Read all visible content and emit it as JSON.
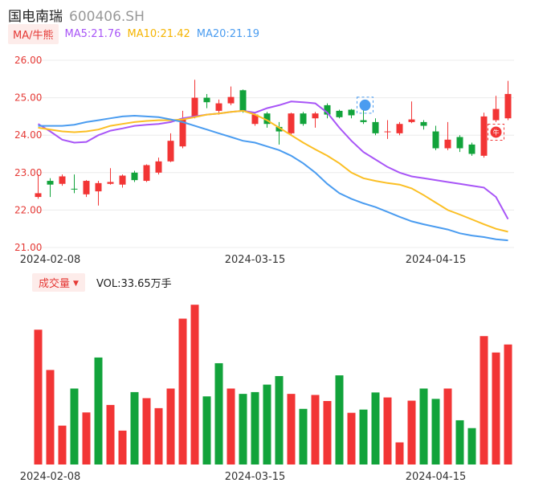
{
  "header": {
    "name": "国电南瑞",
    "code": "600406.SH"
  },
  "ma_bar": {
    "selector_label": "MA/牛熊",
    "ma5": "MA5:21.76",
    "ma10": "MA10:21.42",
    "ma20": "MA20:21.19"
  },
  "volume_bar": {
    "selector_label": "成交量",
    "vol_text": "VOL:33.65万手"
  },
  "markers": {
    "flag": "牛"
  },
  "colors": {
    "up": "#f23535",
    "down": "#12a33b",
    "ma5": "#a855f7",
    "ma10": "#fbbf24",
    "ma20": "#4a9cf0",
    "axis": "#e53935"
  },
  "chart_data": [
    {
      "type": "candlestick",
      "y_ticks": [
        "26.00",
        "25.00",
        "24.00",
        "23.00",
        "22.00",
        "21.00"
      ],
      "ylim": [
        21.0,
        26.0
      ],
      "x_tick_labels": [
        "2024-02-08",
        "2024-03-15",
        "2024-04-15"
      ],
      "x_tick_index": [
        1,
        18,
        33
      ],
      "grid": true,
      "candles": [
        {
          "o": 22.35,
          "c": 22.45,
          "h": 22.95,
          "l": 22.3,
          "up": true
        },
        {
          "o": 22.78,
          "c": 22.68,
          "h": 22.85,
          "l": 22.35,
          "up": false
        },
        {
          "o": 22.7,
          "c": 22.9,
          "h": 22.95,
          "l": 22.65,
          "up": true
        },
        {
          "o": 22.57,
          "c": 22.56,
          "h": 22.95,
          "l": 22.45,
          "up": false
        },
        {
          "o": 22.42,
          "c": 22.78,
          "h": 22.8,
          "l": 22.35,
          "up": true
        },
        {
          "o": 22.5,
          "c": 22.72,
          "h": 22.78,
          "l": 22.12,
          "up": true
        },
        {
          "o": 22.7,
          "c": 22.75,
          "h": 23.12,
          "l": 22.68,
          "up": true
        },
        {
          "o": 22.68,
          "c": 22.92,
          "h": 22.95,
          "l": 22.6,
          "up": true
        },
        {
          "o": 23.0,
          "c": 22.8,
          "h": 23.05,
          "l": 22.75,
          "up": false
        },
        {
          "o": 22.78,
          "c": 23.2,
          "h": 23.22,
          "l": 22.75,
          "up": true
        },
        {
          "o": 23.0,
          "c": 23.3,
          "h": 23.4,
          "l": 22.95,
          "up": true
        },
        {
          "o": 23.3,
          "c": 23.85,
          "h": 24.05,
          "l": 23.28,
          "up": true
        },
        {
          "o": 23.7,
          "c": 24.45,
          "h": 24.65,
          "l": 23.65,
          "up": true
        },
        {
          "o": 24.48,
          "c": 25.0,
          "h": 25.48,
          "l": 24.45,
          "up": true
        },
        {
          "o": 25.0,
          "c": 24.88,
          "h": 25.1,
          "l": 24.72,
          "up": false
        },
        {
          "o": 24.65,
          "c": 24.85,
          "h": 24.95,
          "l": 24.55,
          "up": true
        },
        {
          "o": 24.85,
          "c": 25.02,
          "h": 25.3,
          "l": 24.8,
          "up": true
        },
        {
          "o": 25.2,
          "c": 24.65,
          "h": 25.22,
          "l": 24.6,
          "up": false
        },
        {
          "o": 24.3,
          "c": 24.55,
          "h": 24.6,
          "l": 24.25,
          "up": true
        },
        {
          "o": 24.58,
          "c": 24.3,
          "h": 24.62,
          "l": 24.2,
          "up": false
        },
        {
          "o": 24.22,
          "c": 24.1,
          "h": 24.35,
          "l": 23.75,
          "up": false
        },
        {
          "o": 24.05,
          "c": 24.58,
          "h": 24.6,
          "l": 24.0,
          "up": true
        },
        {
          "o": 24.58,
          "c": 24.3,
          "h": 24.62,
          "l": 24.25,
          "up": false
        },
        {
          "o": 24.45,
          "c": 24.58,
          "h": 24.62,
          "l": 24.2,
          "up": true
        },
        {
          "o": 24.8,
          "c": 24.55,
          "h": 24.85,
          "l": 24.45,
          "up": false
        },
        {
          "o": 24.65,
          "c": 24.48,
          "h": 24.68,
          "l": 24.45,
          "up": false
        },
        {
          "o": 24.68,
          "c": 24.53,
          "h": 24.7,
          "l": 24.45,
          "up": false
        },
        {
          "o": 24.4,
          "c": 24.35,
          "h": 24.75,
          "l": 24.3,
          "up": false
        },
        {
          "o": 24.35,
          "c": 24.05,
          "h": 24.45,
          "l": 24.0,
          "up": false
        },
        {
          "o": 24.08,
          "c": 24.1,
          "h": 24.4,
          "l": 23.9,
          "up": true
        },
        {
          "o": 24.05,
          "c": 24.3,
          "h": 24.35,
          "l": 24.0,
          "up": true
        },
        {
          "o": 24.35,
          "c": 24.42,
          "h": 24.9,
          "l": 24.32,
          "up": true
        },
        {
          "o": 24.35,
          "c": 24.25,
          "h": 24.4,
          "l": 24.15,
          "up": false
        },
        {
          "o": 24.1,
          "c": 23.65,
          "h": 24.25,
          "l": 23.6,
          "up": false
        },
        {
          "o": 23.65,
          "c": 23.88,
          "h": 24.35,
          "l": 23.6,
          "up": true
        },
        {
          "o": 23.95,
          "c": 23.65,
          "h": 24.0,
          "l": 23.55,
          "up": false
        },
        {
          "o": 23.75,
          "c": 23.5,
          "h": 23.8,
          "l": 23.45,
          "up": false
        },
        {
          "o": 23.45,
          "c": 24.5,
          "h": 24.6,
          "l": 23.4,
          "up": true
        },
        {
          "o": 24.4,
          "c": 24.7,
          "h": 25.05,
          "l": 24.35,
          "up": true
        },
        {
          "o": 24.45,
          "c": 25.1,
          "h": 25.45,
          "l": 24.4,
          "up": true
        }
      ],
      "series": [
        {
          "name": "MA5",
          "values": [
            24.3,
            24.1,
            23.88,
            23.8,
            23.82,
            24.0,
            24.12,
            24.18,
            24.25,
            24.28,
            24.3,
            24.35,
            24.45,
            24.5,
            24.55,
            24.58,
            24.62,
            24.65,
            24.6,
            24.72,
            24.8,
            24.9,
            24.88,
            24.85,
            24.6,
            24.2,
            23.85,
            23.55,
            23.35,
            23.15,
            23.0,
            22.9,
            22.85,
            22.8,
            22.75,
            22.7,
            22.65,
            22.6,
            22.35,
            21.76
          ]
        },
        {
          "name": "MA10",
          "values": [
            24.2,
            24.15,
            24.1,
            24.08,
            24.1,
            24.15,
            24.25,
            24.3,
            24.35,
            24.38,
            24.4,
            24.4,
            24.42,
            24.48,
            24.55,
            24.58,
            24.62,
            24.65,
            24.55,
            24.4,
            24.2,
            24.0,
            23.8,
            23.62,
            23.45,
            23.25,
            23.0,
            22.85,
            22.78,
            22.72,
            22.68,
            22.58,
            22.4,
            22.2,
            22.0,
            21.88,
            21.75,
            21.62,
            21.5,
            21.42
          ]
        },
        {
          "name": "MA20",
          "values": [
            24.25,
            24.25,
            24.25,
            24.28,
            24.35,
            24.4,
            24.45,
            24.5,
            24.52,
            24.5,
            24.48,
            24.42,
            24.35,
            24.25,
            24.15,
            24.05,
            23.95,
            23.85,
            23.8,
            23.7,
            23.6,
            23.45,
            23.25,
            23.0,
            22.7,
            22.45,
            22.3,
            22.18,
            22.08,
            21.95,
            21.82,
            21.7,
            21.62,
            21.55,
            21.48,
            21.38,
            21.32,
            21.28,
            21.22,
            21.19
          ]
        }
      ]
    },
    {
      "type": "bar",
      "title": "成交量",
      "unit": "万手",
      "last_volume": 33.65,
      "ymax": 48,
      "values": [
        37.8,
        26.5,
        10.9,
        21.3,
        14.6,
        30.0,
        16.7,
        9.5,
        20.3,
        18.6,
        15.8,
        21.3,
        40.9,
        44.8,
        19.1,
        28.4,
        21.3,
        19.8,
        20.3,
        22.4,
        24.8,
        19.8,
        15.6,
        19.5,
        17.8,
        25.0,
        14.5,
        15.4,
        20.2,
        18.8,
        6.2,
        17.9,
        21.3,
        18.4,
        21.3,
        12.4,
        10.2,
        36.0,
        31.4,
        33.65
      ],
      "up": [
        true,
        true,
        true,
        false,
        true,
        false,
        true,
        true,
        false,
        true,
        true,
        true,
        true,
        true,
        false,
        false,
        true,
        false,
        false,
        false,
        false,
        true,
        false,
        true,
        true,
        false,
        true,
        false,
        false,
        true,
        true,
        true,
        false,
        false,
        true,
        false,
        false,
        true,
        true,
        true
      ]
    }
  ]
}
